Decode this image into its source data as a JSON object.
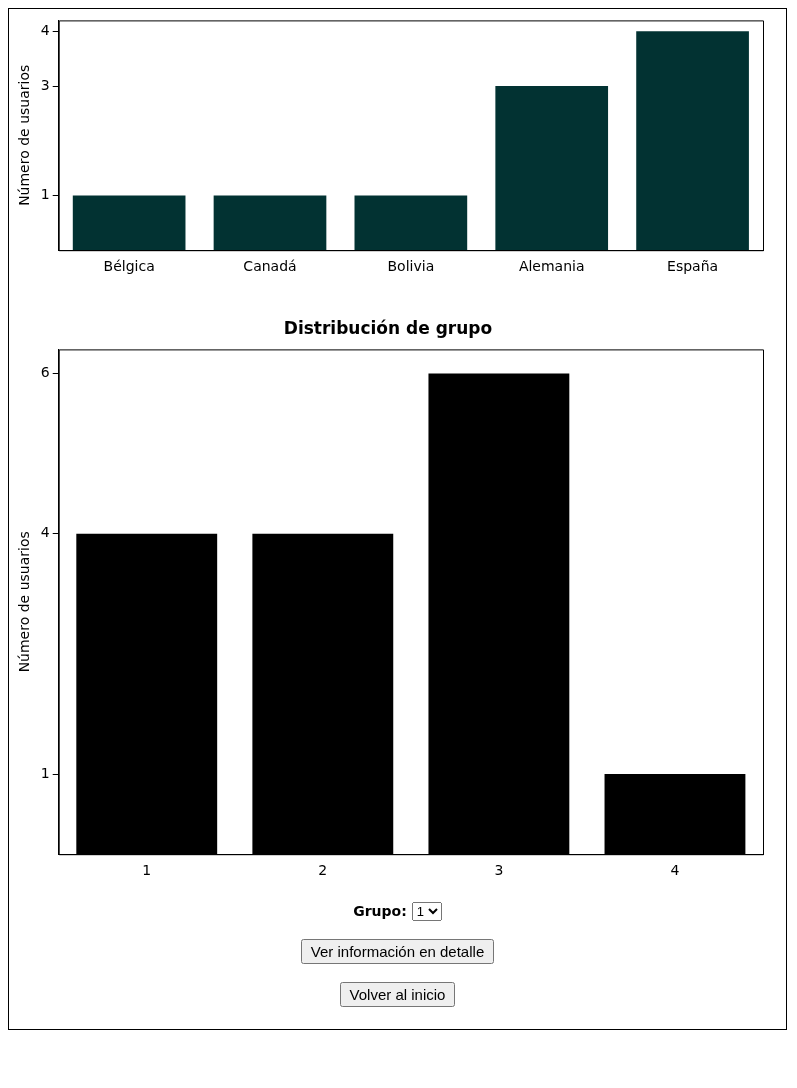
{
  "chart_data": [
    {
      "type": "bar",
      "ylabel": "Número de usuarios",
      "categories": [
        "Bélgica",
        "Canadá",
        "Bolivia",
        "Alemania",
        "España"
      ],
      "values": [
        1,
        1,
        1,
        3,
        4
      ],
      "color": "#023232",
      "ylim": [
        0,
        4.2
      ],
      "yticks": [
        1,
        3,
        4
      ],
      "grid": false,
      "legend": false
    },
    {
      "type": "bar",
      "title": "Distribución de grupo",
      "ylabel": "Número de usuarios",
      "categories": [
        "1",
        "2",
        "3",
        "4"
      ],
      "values": [
        4,
        4,
        6,
        1
      ],
      "color": "#000000",
      "ylim": [
        0,
        6.3
      ],
      "yticks": [
        1,
        4,
        6
      ],
      "grid": false,
      "legend": false
    },
    {
      "type": "other",
      "annotations": [
        "Grupo:",
        "1",
        "Ver información en detalle",
        "Volver al inicio"
      ]
    }
  ]
}
